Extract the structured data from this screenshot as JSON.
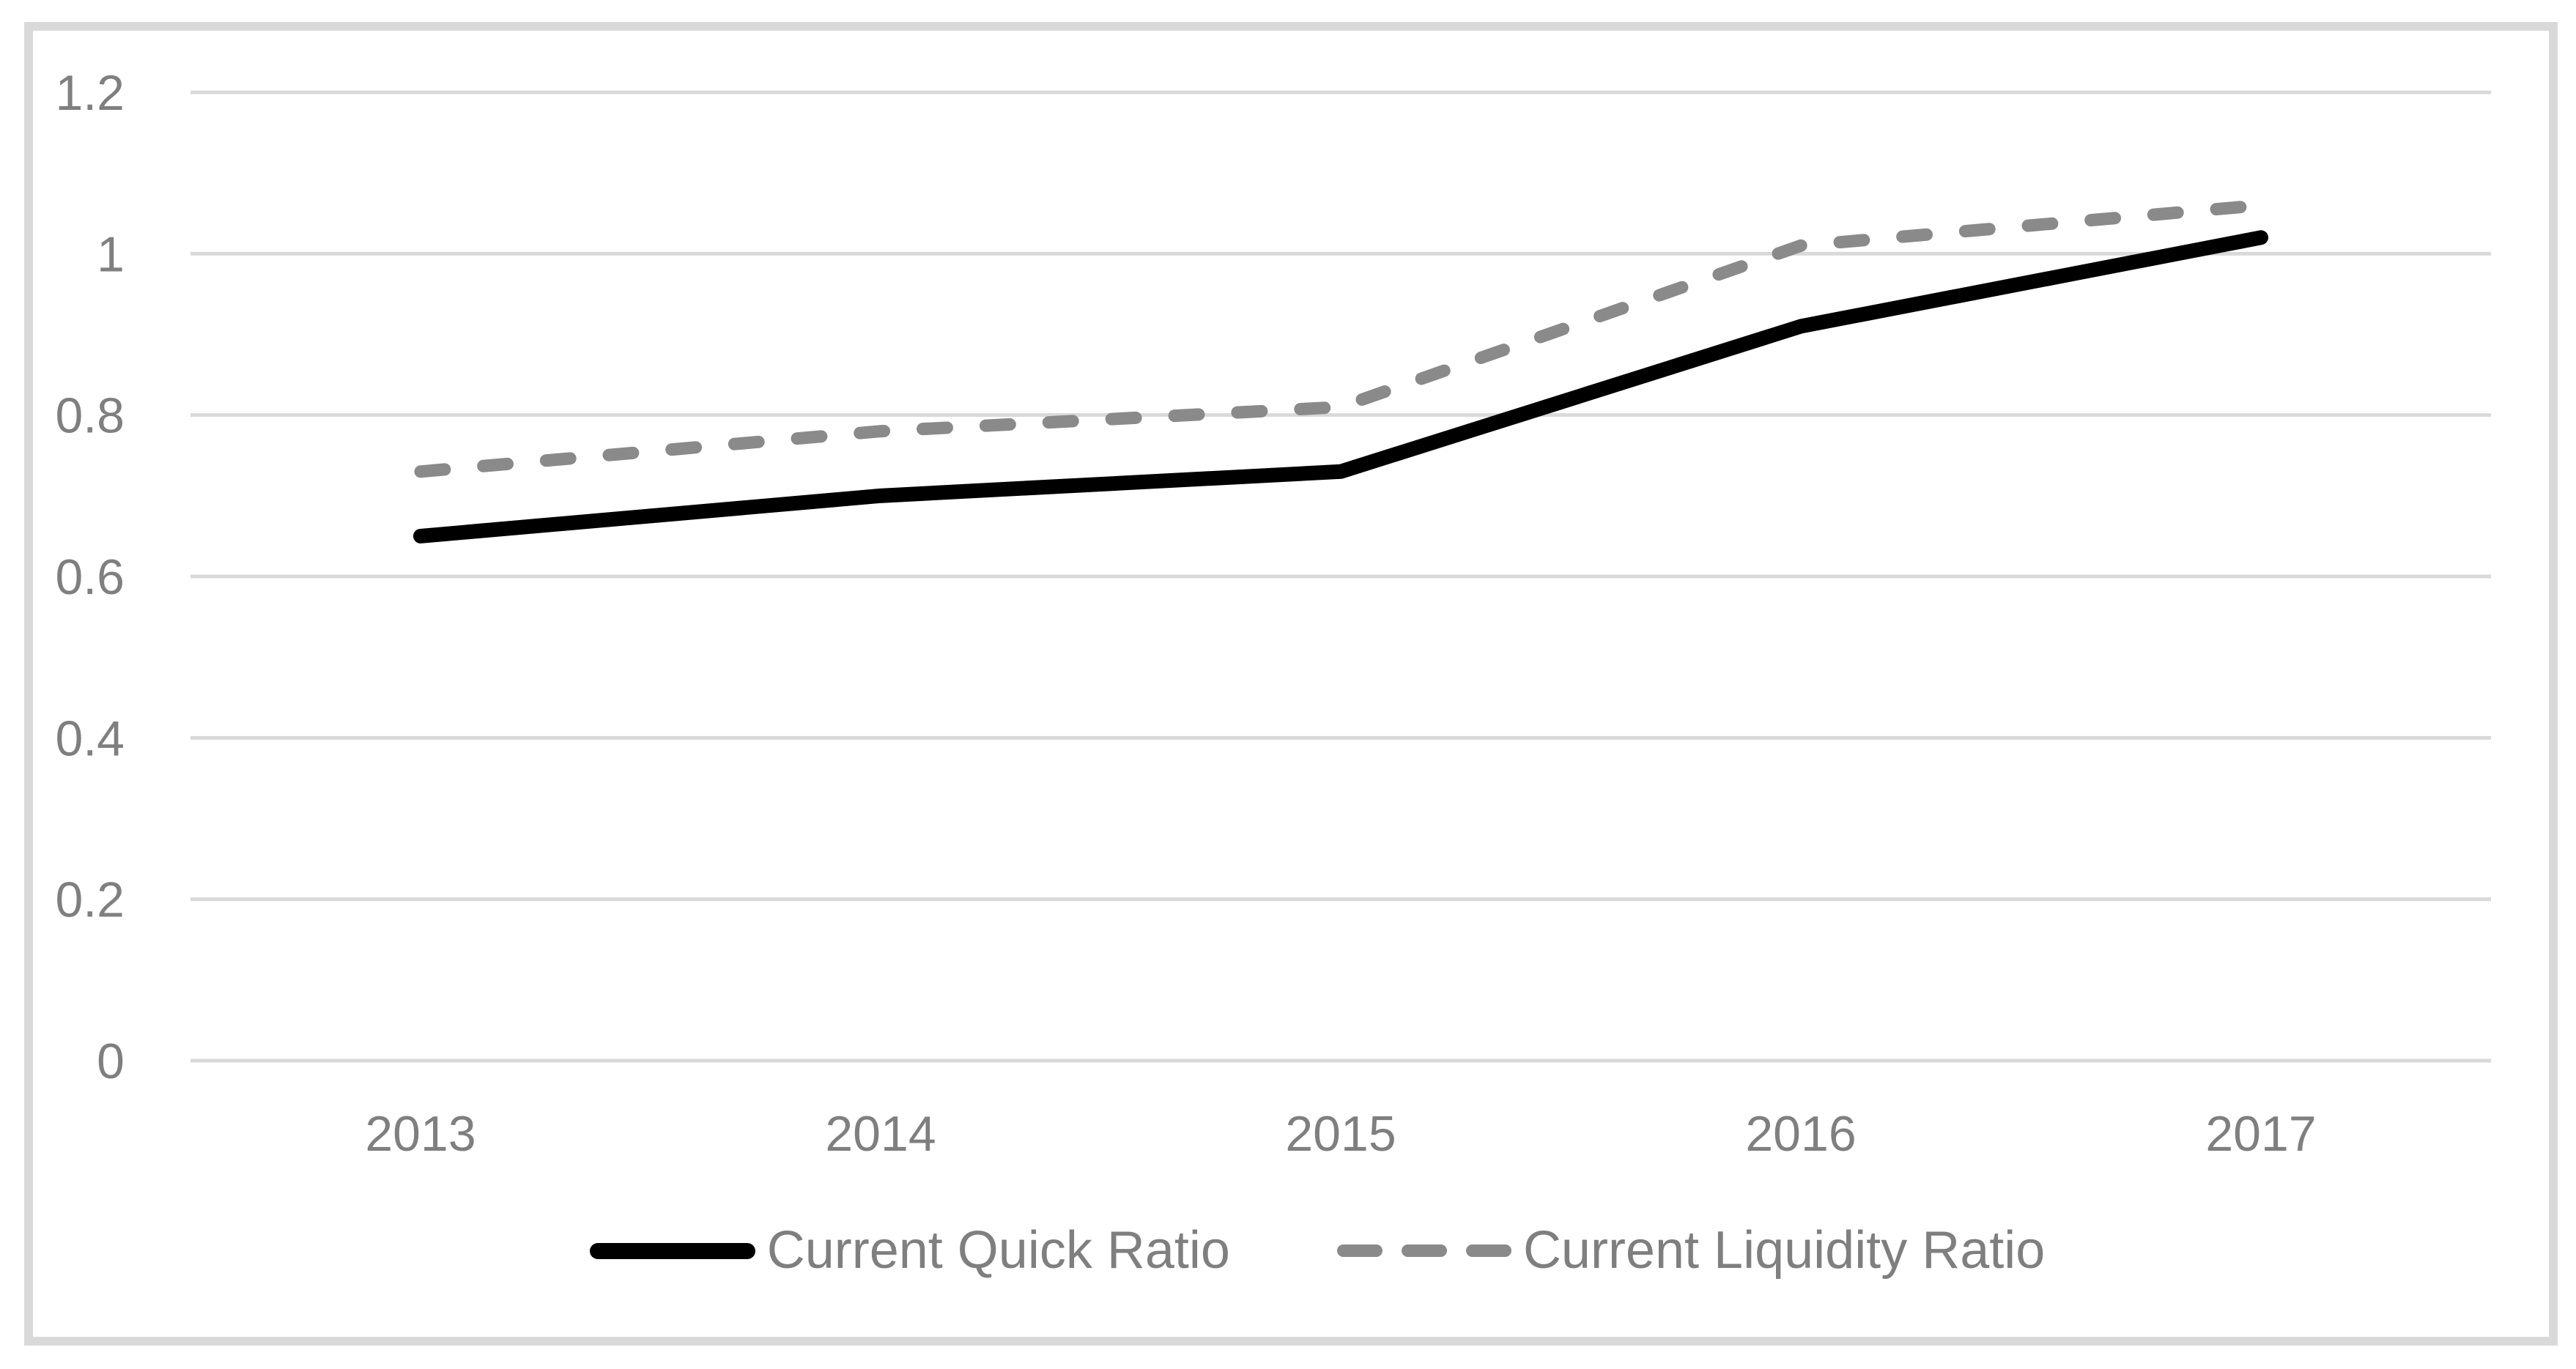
{
  "chart_data": {
    "type": "line",
    "categories": [
      "2013",
      "2014",
      "2015",
      "2016",
      "2017"
    ],
    "series": [
      {
        "name": "Current Quick Ratio",
        "values": [
          0.65,
          0.7,
          0.73,
          0.91,
          1.02
        ],
        "color": "#000000",
        "style": "solid"
      },
      {
        "name": "Current Liquidity Ratio",
        "values": [
          0.73,
          0.78,
          0.81,
          1.01,
          1.06
        ],
        "color": "#8a8a8a",
        "style": "dashed"
      }
    ],
    "xlabel": "",
    "ylabel": "",
    "ylim": [
      0,
      1.2
    ],
    "yticks": [
      0,
      0.2,
      0.4,
      0.6,
      0.8,
      1,
      1.2
    ],
    "ytick_labels": [
      "0",
      "0.2",
      "0.4",
      "0.6",
      "0.8",
      "1",
      "1.2"
    ],
    "grid": "horizontal",
    "legend_position": "bottom",
    "colors": {
      "background": "#ffffff",
      "gridline": "#d9d9d9",
      "chart_border": "#d9d9d9",
      "tick_text": "#7f7f7f",
      "legend_text": "#7f7f7f",
      "quick_ratio_line": "#000000",
      "liquidity_ratio_line": "#8a8a8a"
    }
  }
}
